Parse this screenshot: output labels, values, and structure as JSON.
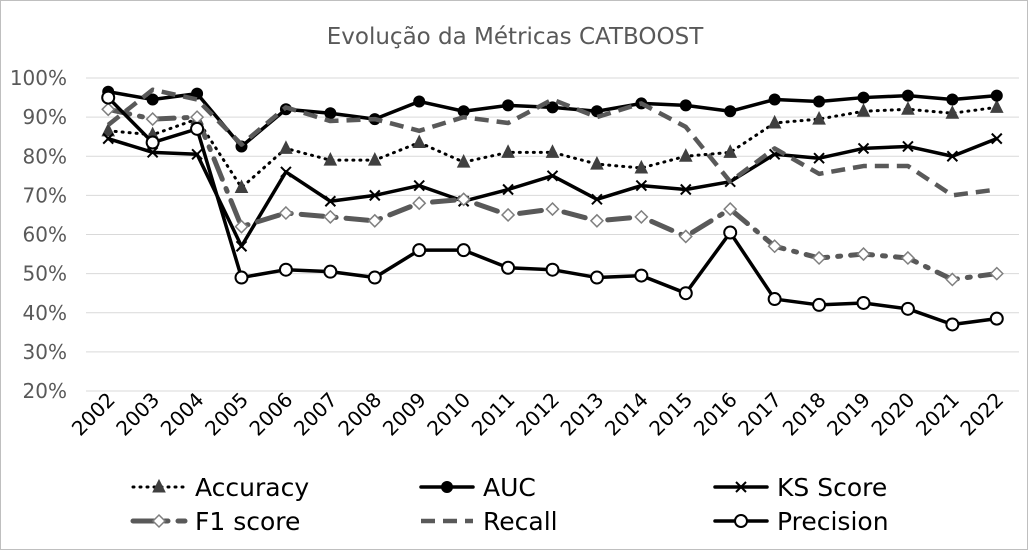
{
  "chart_data": {
    "type": "line",
    "title": "Evolução da Métricas CATBOOST",
    "xlabel": "",
    "ylabel": "",
    "ylim": [
      20,
      100
    ],
    "y_ticks": [
      "100%",
      "90%",
      "80%",
      "70%",
      "60%",
      "50%",
      "40%",
      "30%",
      "20%"
    ],
    "grid": "horizontal",
    "legend_position": "bottom",
    "categories": [
      "2002",
      "2003",
      "2004",
      "2005",
      "2006",
      "2007",
      "2008",
      "2009",
      "2010",
      "2011",
      "2012",
      "2013",
      "2014",
      "2015",
      "2016",
      "2017",
      "2018",
      "2019",
      "2020",
      "2021",
      "2022"
    ],
    "series": [
      {
        "name": "Accuracy",
        "style": "dotted",
        "marker": "triangle",
        "color": "#000000",
        "values": [
          86.5,
          85.5,
          89.5,
          72,
          82,
          79,
          79,
          83.5,
          78.5,
          81,
          81,
          78,
          77,
          80,
          81,
          88.5,
          89.5,
          91.5,
          92,
          91,
          92.5
        ]
      },
      {
        "name": "AUC",
        "style": "solid",
        "marker": "filled-circle",
        "color": "#000000",
        "values": [
          96.5,
          94.5,
          96,
          82.5,
          92,
          91,
          89.5,
          94,
          91.5,
          93,
          92.5,
          91.5,
          93.5,
          93,
          91.5,
          94.5,
          94,
          95,
          95.5,
          94.5,
          95.5
        ]
      },
      {
        "name": "KS Score",
        "style": "solid",
        "marker": "x",
        "color": "#000000",
        "values": [
          84.5,
          81,
          80.5,
          57,
          76,
          68.5,
          70,
          72.5,
          68.5,
          71.5,
          75,
          69,
          72.5,
          71.5,
          73.5,
          80.5,
          79.5,
          82,
          82.5,
          80,
          84.5
        ]
      },
      {
        "name": "F1 score",
        "style": "long-dash-dot",
        "marker": "open-diamond",
        "color": "#595959",
        "values": [
          92,
          89.5,
          90,
          62,
          65.5,
          64.5,
          63.5,
          68,
          69,
          65,
          66.5,
          63.5,
          64.5,
          59.5,
          66.5,
          57,
          54,
          55,
          54,
          48.5,
          50
        ]
      },
      {
        "name": "Recall",
        "style": "dashed",
        "marker": "none",
        "color": "#595959",
        "values": [
          88,
          97,
          94.5,
          83,
          92.5,
          89,
          89.5,
          86.5,
          90,
          88.5,
          94.5,
          90,
          93.5,
          87.5,
          73.5,
          82,
          75.5,
          77.5,
          77.5,
          70,
          71.5
        ]
      },
      {
        "name": "Precision",
        "style": "solid",
        "marker": "open-circle",
        "color": "#000000",
        "values": [
          95,
          83.5,
          87,
          49,
          51,
          50.5,
          49,
          56,
          56,
          51.5,
          51,
          49,
          49.5,
          45,
          60.5,
          43.5,
          42,
          42.5,
          41,
          37,
          38.5
        ]
      }
    ]
  }
}
